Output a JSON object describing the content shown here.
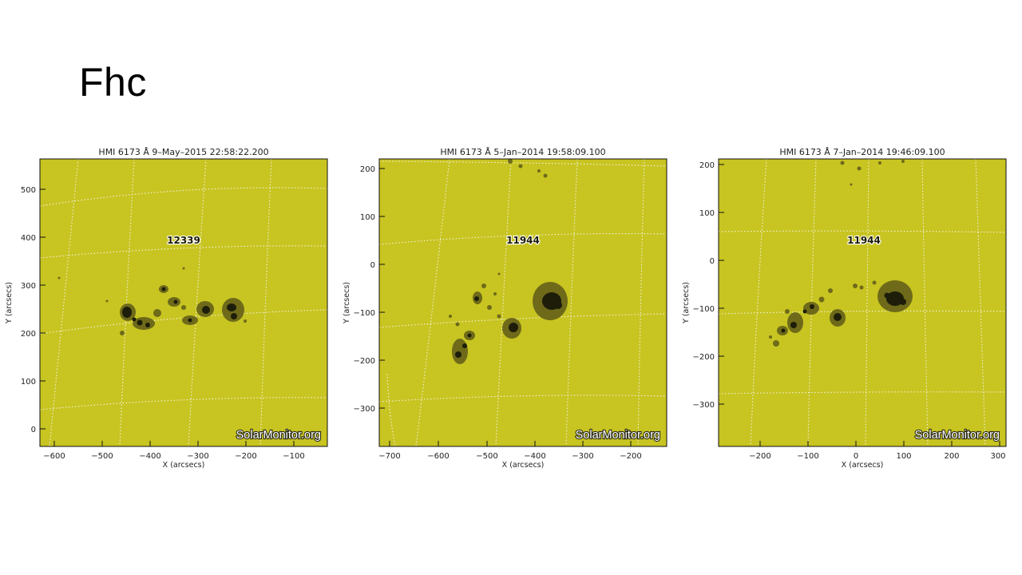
{
  "slide": {
    "title": "Fhc"
  },
  "colors": {
    "photosphere": "#c8c421",
    "umbra": "#1d1d0a",
    "penumbra": "#6e6a1a",
    "grid": "#f4f4e0"
  },
  "panels": [
    {
      "title": "HMI 6173 Å  9–May–2015 22:58:22.200",
      "region_label": "12339",
      "watermark": "SolarMonitor.org",
      "x_axis": {
        "title": "X (arcsecs)",
        "ticks": [
          "−600",
          "−500",
          "−400",
          "−300",
          "−200",
          "−100"
        ]
      },
      "y_axis": {
        "title": "Y (arcsecs)",
        "ticks": [
          "0",
          "100",
          "200",
          "300",
          "400",
          "500"
        ]
      }
    },
    {
      "title": "HMI 6173 Å  5–Jan–2014 19:58:09.100",
      "region_label": "11944",
      "watermark": "SolarMonitor.org",
      "x_axis": {
        "title": "X (arcsecs)",
        "ticks": [
          "−700",
          "−600",
          "−500",
          "−400",
          "−300",
          "−200"
        ]
      },
      "y_axis": {
        "title": "Y (arcsecs)",
        "ticks": [
          "−300",
          "−200",
          "−100",
          "0",
          "100",
          "200"
        ]
      }
    },
    {
      "title": "HMI 6173 Å  7–Jan–2014 19:46:09.100",
      "region_label": "11944",
      "watermark": "SolarMonitor.org",
      "x_axis": {
        "title": "X (arcsecs)",
        "ticks": [
          "−200",
          "−100",
          "0",
          "100",
          "200",
          "300"
        ]
      },
      "y_axis": {
        "title": "Y (arcsecs)",
        "ticks": [
          "−300",
          "−200",
          "−100",
          "0",
          "100",
          "200"
        ]
      }
    }
  ]
}
